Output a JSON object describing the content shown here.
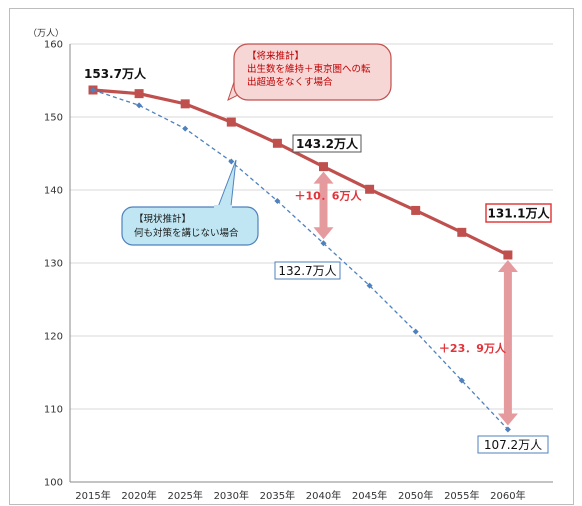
{
  "chart_data": {
    "type": "line",
    "y_unit": "（万人）",
    "categories": [
      "2015年",
      "2020年",
      "2025年",
      "2030年",
      "2035年",
      "2040年",
      "2045年",
      "2050年",
      "2055年",
      "2060年"
    ],
    "ylim": [
      100,
      160
    ],
    "yticks": [
      100,
      110,
      120,
      130,
      140,
      150,
      160
    ],
    "grid": true,
    "series": [
      {
        "name": "将来推計",
        "color": "#c0504d",
        "style": "solid",
        "values": [
          153.7,
          153.2,
          151.8,
          149.3,
          146.4,
          143.2,
          140.1,
          137.2,
          134.2,
          131.1
        ]
      },
      {
        "name": "現状推計",
        "color": "#4f81bd",
        "style": "dashed",
        "values": [
          153.7,
          151.6,
          148.4,
          143.9,
          138.5,
          132.7,
          126.9,
          120.6,
          113.9,
          107.2
        ]
      }
    ],
    "point_labels": [
      {
        "text": "153.7万人",
        "series": 0,
        "index": 0
      },
      {
        "text": "143.2万人",
        "series": 0,
        "index": 5
      },
      {
        "text": "131.1万人",
        "series": 0,
        "index": 9
      },
      {
        "text": "132.7万人",
        "series": 1,
        "index": 5
      },
      {
        "text": "107.2万人",
        "series": 1,
        "index": 9
      }
    ],
    "differences": [
      {
        "text": "＋10．6万人",
        "index": 5
      },
      {
        "text": "＋23．9万人",
        "index": 9
      }
    ],
    "callouts": {
      "future": [
        "【将来推計】",
        "出生数を維持＋東京圏への転",
        "出超過をなくす場合"
      ],
      "current": [
        "【現状推計】",
        "何も対策を講じない場合"
      ]
    }
  }
}
